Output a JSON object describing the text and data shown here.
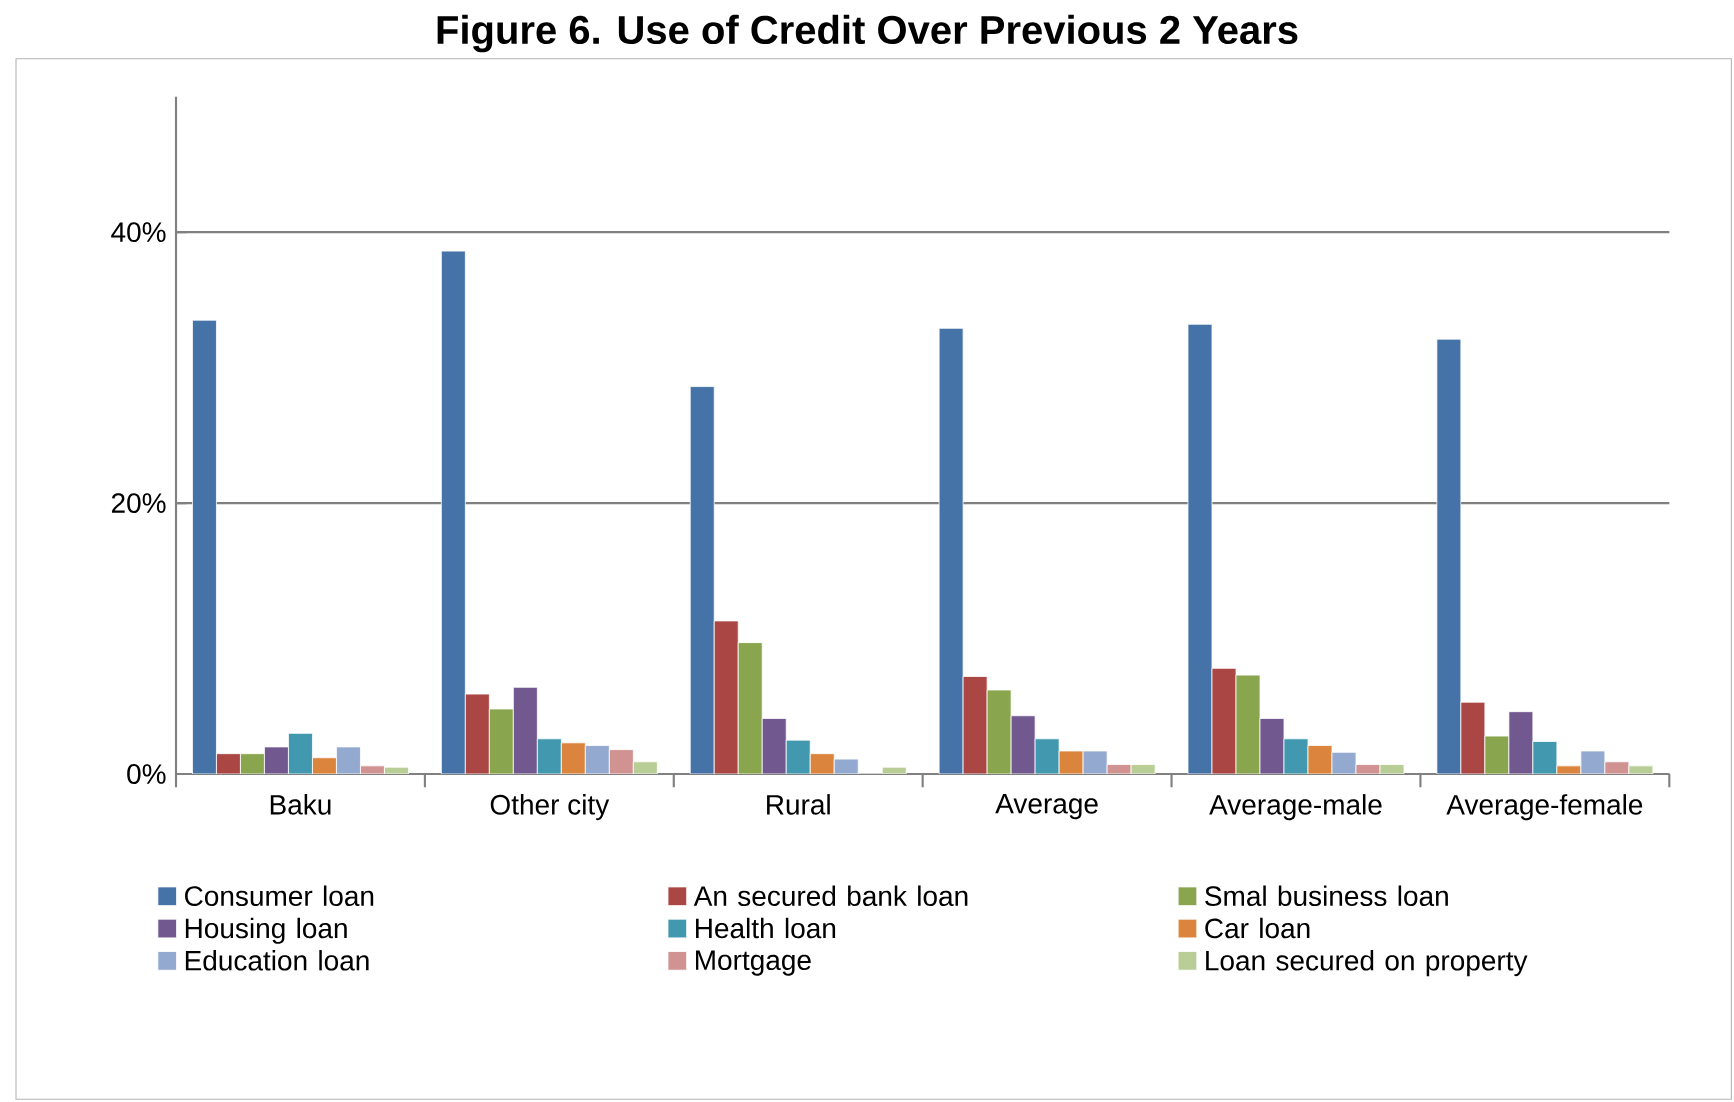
{
  "chart_data": {
    "type": "bar",
    "title": "Figure 6. Use of Credit Over Previous 2 Years",
    "categories": [
      "Baku",
      "Other city",
      "Rural",
      "Average",
      "Average-male",
      "Average-female"
    ],
    "series": [
      {
        "name": "Consumer loan",
        "color": "#4572a7",
        "values": [
          33.5,
          38.6,
          28.6,
          32.9,
          33.2,
          32.1
        ]
      },
      {
        "name": "An secured bank loan",
        "color": "#aa4643",
        "values": [
          1.5,
          5.9,
          11.3,
          7.2,
          7.8,
          5.3
        ]
      },
      {
        "name": "Smal business loan",
        "color": "#89a54e",
        "values": [
          1.5,
          4.8,
          9.7,
          6.2,
          7.3,
          2.8
        ]
      },
      {
        "name": "Housing loan",
        "color": "#71588f",
        "values": [
          2.0,
          6.4,
          4.1,
          4.3,
          4.1,
          4.6
        ]
      },
      {
        "name": "Health loan",
        "color": "#4198af",
        "values": [
          3.0,
          2.6,
          2.5,
          2.6,
          2.6,
          2.4
        ]
      },
      {
        "name": "Car loan",
        "color": "#db843d",
        "values": [
          1.2,
          2.3,
          1.5,
          1.7,
          2.1,
          0.6
        ]
      },
      {
        "name": "Education loan",
        "color": "#93a9cf",
        "values": [
          2.0,
          2.1,
          1.1,
          1.7,
          1.6,
          1.7
        ]
      },
      {
        "name": "Mortgage",
        "color": "#d19392",
        "values": [
          0.6,
          1.8,
          0,
          0.7,
          0.7,
          0.9
        ]
      },
      {
        "name": "Loan secured on property",
        "color": "#b9cd96",
        "values": [
          0.5,
          0.9,
          0.5,
          0.7,
          0.7,
          0.6
        ]
      }
    ],
    "ylim": [
      0,
      50
    ],
    "yticks": [
      {
        "value": 0,
        "label": "0%"
      },
      {
        "value": 20,
        "label": "20%"
      },
      {
        "value": 40,
        "label": "40%"
      }
    ],
    "grid": "y",
    "legend": "bottom"
  }
}
